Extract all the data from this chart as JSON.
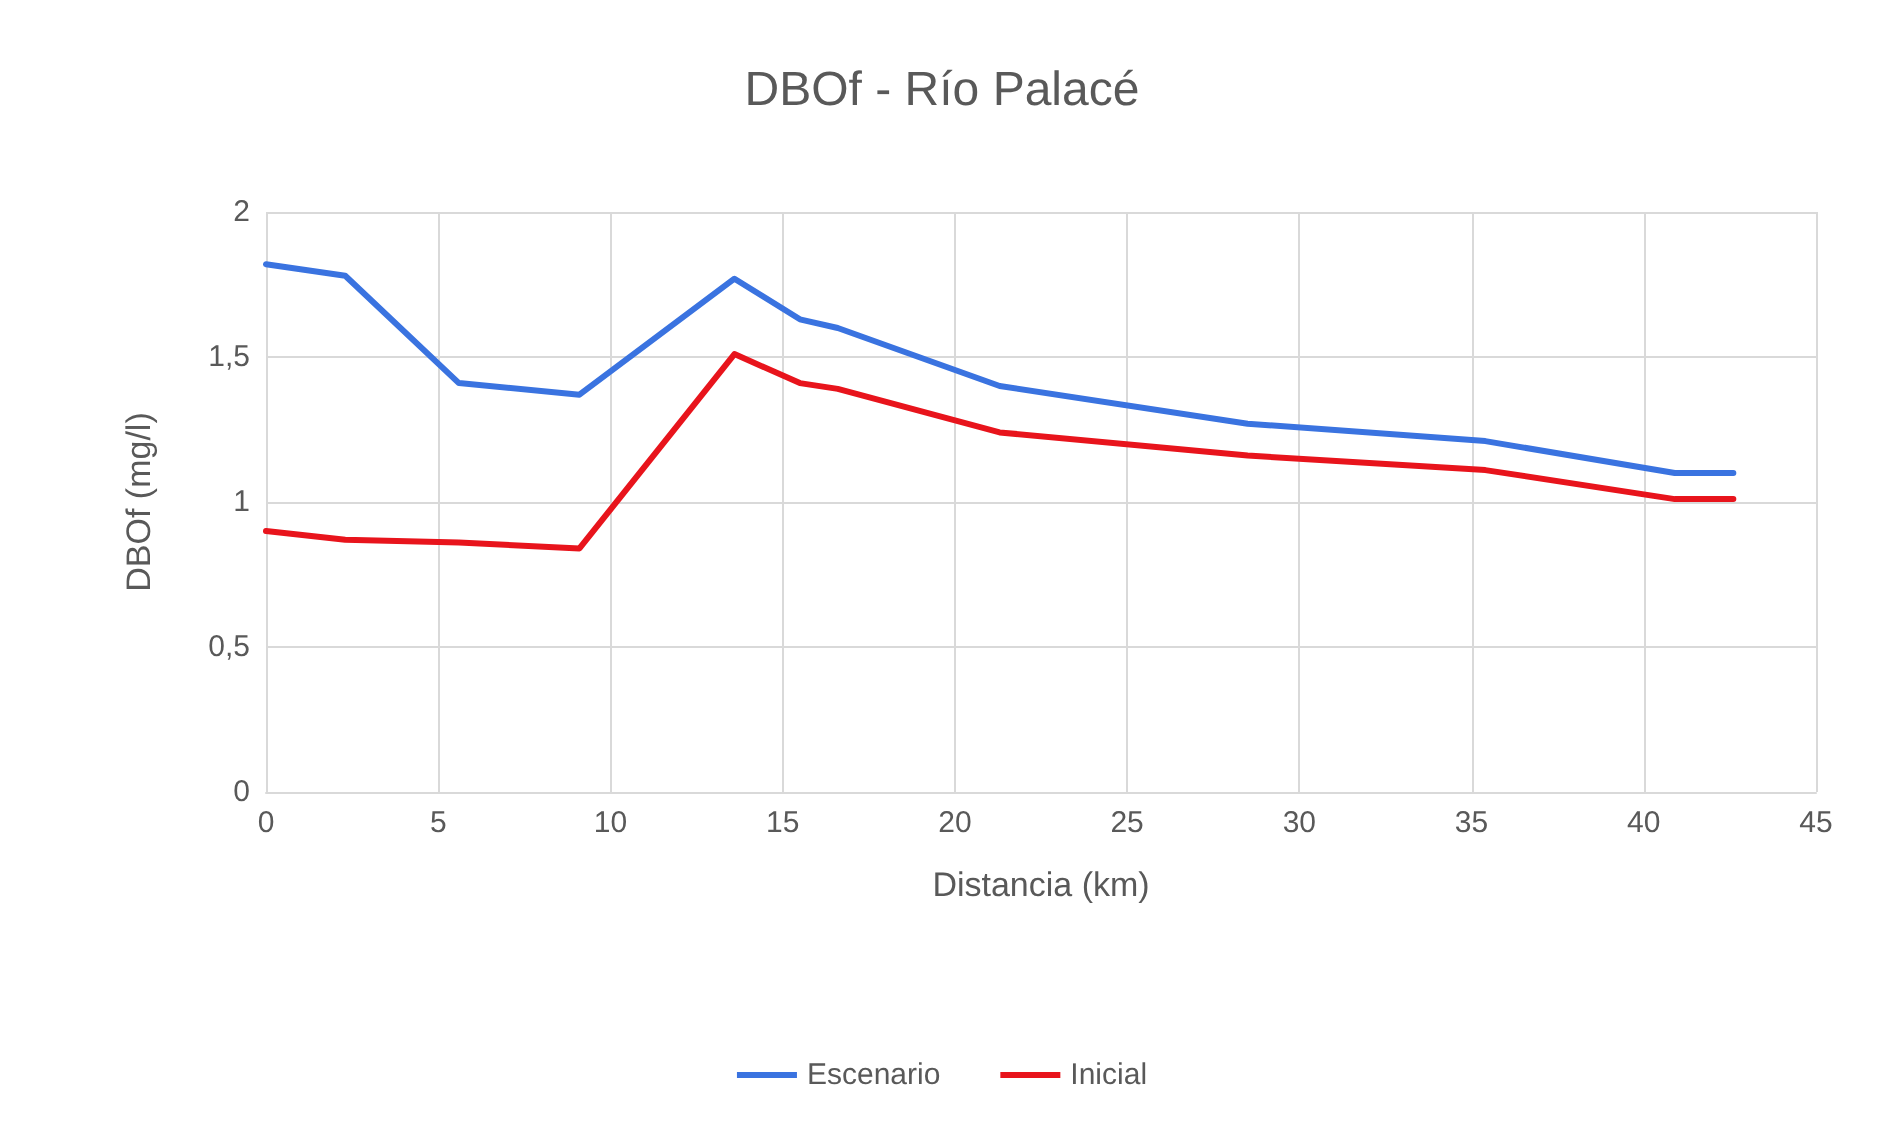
{
  "chart_data": {
    "type": "line",
    "title": "DBOf - Río Palacé",
    "xlabel": "Distancia (km)",
    "ylabel": "DBOf (mg/l)",
    "xlim": [
      0,
      45
    ],
    "xticks": [
      0,
      5,
      10,
      15,
      20,
      25,
      30,
      35,
      40,
      45
    ],
    "ylim": [
      0,
      2
    ],
    "yticks": [
      {
        "value": 0,
        "label": "0"
      },
      {
        "value": 0.5,
        "label": "0,5"
      },
      {
        "value": 1,
        "label": "1"
      },
      {
        "value": 1.5,
        "label": "1,5"
      },
      {
        "value": 2,
        "label": "2"
      }
    ],
    "grid": true,
    "legend": "bottom",
    "marker": "none",
    "line_style": "solid",
    "x": [
      0,
      2.3,
      5.6,
      9.1,
      13.6,
      15.5,
      16.6,
      21.3,
      28.5,
      35.4,
      40.9,
      42.6
    ],
    "series": [
      {
        "name": "Escenario",
        "color": "#3a73e0",
        "values": [
          1.82,
          1.78,
          1.41,
          1.37,
          1.77,
          1.63,
          1.6,
          1.4,
          1.27,
          1.21,
          1.1,
          1.1
        ]
      },
      {
        "name": "Inicial",
        "color": "#e8141c",
        "values": [
          0.9,
          0.87,
          0.86,
          0.84,
          1.51,
          1.41,
          1.39,
          1.24,
          1.16,
          1.11,
          1.01,
          1.01
        ]
      }
    ]
  }
}
